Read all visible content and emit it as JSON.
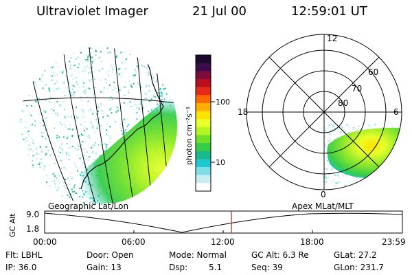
{
  "header": {
    "instrument": "Ultraviolet Imager",
    "date": "21 Jul 00",
    "time": "12:59:01 UT"
  },
  "colorbar": {
    "unit_label": "photon cm⁻²s⁻¹",
    "ticks": [
      "100",
      "10"
    ],
    "colors": [
      "#1a0a2e",
      "#3a0c4a",
      "#7a0d3c",
      "#b80f1f",
      "#e8281a",
      "#ff6a00",
      "#ffae00",
      "#ffe200",
      "#e8ff2a",
      "#b5f520",
      "#6fe02a",
      "#37cc4a",
      "#1ab98c",
      "#1fc7cf",
      "#7fdde8",
      "#c9eef2",
      "#ffffff"
    ]
  },
  "geo_panel": {
    "caption": "Geographic Lat/Lon"
  },
  "polar_panel": {
    "caption": "Apex MLat/MLT",
    "mlt_labels": {
      "top": "12",
      "left": "18",
      "right": "6",
      "bottom": "0"
    },
    "lat_labels": [
      "60",
      "70",
      "80"
    ]
  },
  "altitude_plot": {
    "axis_label": "GC Alt",
    "y_ticks": [
      "9.0",
      "1.8"
    ],
    "x_ticks": [
      "00:00",
      "06:00",
      "12:00",
      "18:00",
      "23:59"
    ],
    "marker_color": "#e02020"
  },
  "info": {
    "filter": "Flt: LBHL",
    "ip": "IP: 36.0",
    "door": "Door: Open",
    "gain": "Gain: 13",
    "mode": "Mode: Normal",
    "dsp_label": "Dsp:",
    "dsp_value": "5.1",
    "gc_alt": "GC Alt: 6.3 Re",
    "seq": "Seq: 39",
    "glat": "GLat: 27.2",
    "glon": "GLon: 231.7"
  }
}
